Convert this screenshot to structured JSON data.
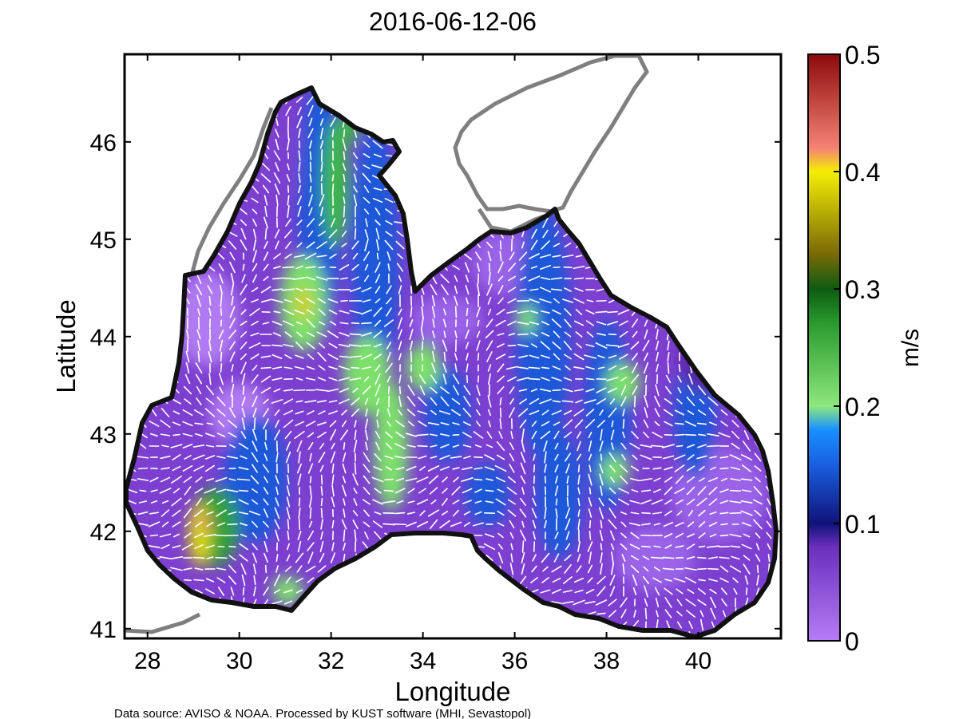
{
  "title": "2016-06-12-06",
  "map": {
    "xlabel": "Longitude",
    "ylabel": "Latitude",
    "xlim": [
      27.5,
      41.8
    ],
    "ylim": [
      40.9,
      46.9
    ],
    "x_ticks": [
      "28",
      "30",
      "32",
      "34",
      "36",
      "38",
      "40"
    ],
    "y_ticks": [
      "41",
      "42",
      "43",
      "44",
      "45",
      "46"
    ],
    "field": "surface current speed with white direction arrows"
  },
  "colorbar": {
    "unit": "m/s",
    "range": [
      0,
      0.5
    ],
    "ticks": [
      "0",
      "0.1",
      "0.2",
      "0.3",
      "0.4",
      "0.5"
    ],
    "stops": [
      {
        "v": 0.0,
        "color": "#b77cf6"
      },
      {
        "v": 0.08,
        "color": "#6a2fbd"
      },
      {
        "v": 0.1,
        "color": "#10127a"
      },
      {
        "v": 0.15,
        "color": "#1a5fe0"
      },
      {
        "v": 0.18,
        "color": "#1890ff"
      },
      {
        "v": 0.2,
        "color": "#8de87d"
      },
      {
        "v": 0.27,
        "color": "#2b9b2f"
      },
      {
        "v": 0.3,
        "color": "#0d5b12"
      },
      {
        "v": 0.33,
        "color": "#7a6a05"
      },
      {
        "v": 0.4,
        "color": "#f4ee05"
      },
      {
        "v": 0.42,
        "color": "#f58275"
      },
      {
        "v": 0.5,
        "color": "#8c0a0a"
      }
    ]
  },
  "credit": "Data source: AVISO & NOAA. Processed by KUST software (MHI, Sevastopol)"
}
